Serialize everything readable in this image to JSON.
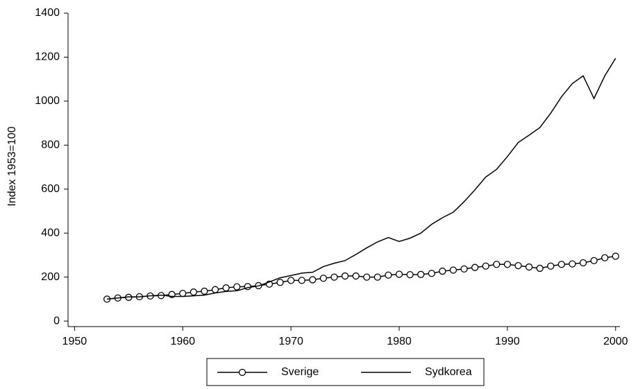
{
  "chart_data": {
    "type": "line",
    "y_label": "Index 1953=100",
    "x": [
      1953,
      1954,
      1955,
      1956,
      1957,
      1958,
      1959,
      1960,
      1961,
      1962,
      1963,
      1964,
      1965,
      1966,
      1967,
      1968,
      1969,
      1970,
      1971,
      1972,
      1973,
      1974,
      1975,
      1976,
      1977,
      1978,
      1979,
      1980,
      1981,
      1982,
      1983,
      1984,
      1985,
      1986,
      1987,
      1988,
      1989,
      1990,
      1991,
      1992,
      1993,
      1994,
      1995,
      1996,
      1997,
      1998,
      1999,
      2000
    ],
    "series": [
      {
        "name": "Sverige",
        "color": "#000000",
        "marker": "circle",
        "values": [
          100,
          105,
          108,
          111,
          114,
          116,
          121,
          126,
          132,
          136,
          143,
          151,
          156,
          157,
          161,
          168,
          176,
          185,
          185,
          188,
          195,
          200,
          205,
          205,
          200,
          200,
          209,
          213,
          211,
          212,
          217,
          227,
          232,
          237,
          244,
          250,
          258,
          258,
          252,
          246,
          240,
          250,
          258,
          260,
          265,
          275,
          288,
          295
        ]
      },
      {
        "name": "Sydkorea",
        "color": "#000000",
        "marker": "none",
        "values": [
          100,
          105,
          110,
          110,
          115,
          118,
          112,
          112,
          115,
          118,
          128,
          135,
          138,
          152,
          160,
          178,
          197,
          207,
          218,
          222,
          248,
          263,
          275,
          303,
          333,
          360,
          380,
          362,
          377,
          400,
          440,
          470,
          495,
          543,
          597,
          655,
          690,
          748,
          812,
          845,
          880,
          945,
          1020,
          1080,
          1115,
          1012,
          1115,
          1195
        ]
      }
    ],
    "xlim": [
      1949.4,
      2000.4
    ],
    "xticks": [
      1950,
      1960,
      1970,
      1980,
      1990,
      2000
    ],
    "ylim": [
      -25,
      1400
    ],
    "yticks": [
      0,
      200,
      400,
      600,
      800,
      1000,
      1200,
      1400
    ],
    "grid": false,
    "legend": "bottom"
  }
}
